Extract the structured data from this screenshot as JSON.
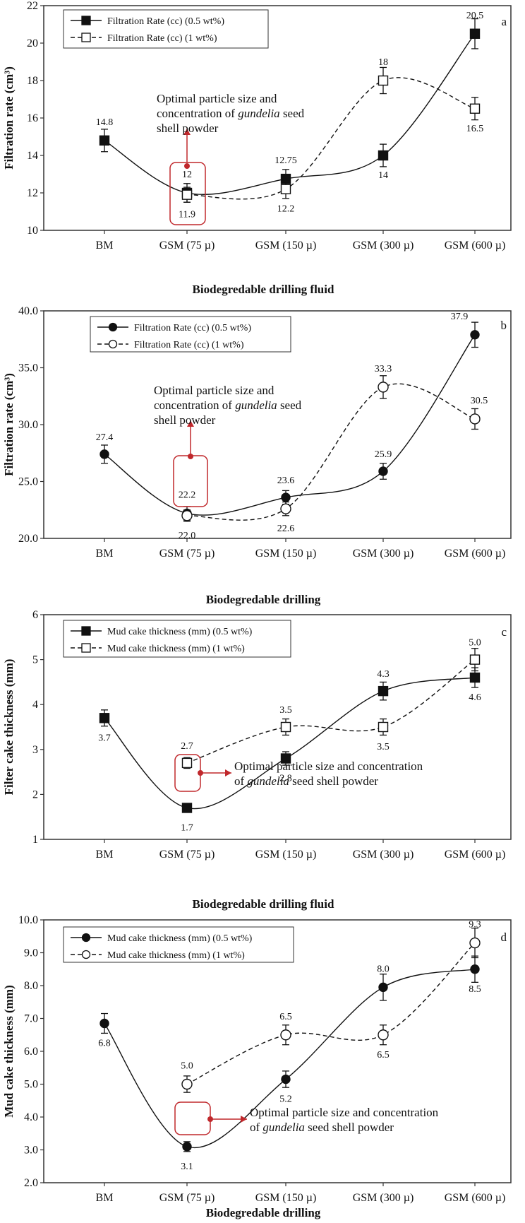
{
  "chart_data": [
    {
      "type": "line",
      "panel": "a",
      "xlabel": "Biodegredable drilling fluid",
      "ylabel": "Filtration rate (cm³)",
      "ylim": [
        10,
        22
      ],
      "yticks": [
        "10",
        "12",
        "14",
        "16",
        "18",
        "20",
        "22"
      ],
      "categories": [
        "BM",
        "GSM (75 µ)",
        "GSM (150 µ)",
        "GSM (300 µ)",
        "GSM (600 µ)"
      ],
      "series": [
        {
          "name": "Filtration Rate (cc) (0.5 wt%)",
          "marker": "square",
          "filled": true,
          "dashed": false,
          "values": [
            14.8,
            12.0,
            12.75,
            14.0,
            20.5
          ],
          "errors": [
            0.6,
            0.5,
            0.5,
            0.6,
            0.8
          ],
          "labels": [
            "14.8",
            "12",
            "12.75",
            "14",
            "20.5"
          ]
        },
        {
          "name": "Filtration Rate (cc) (1 wt%)",
          "marker": "square",
          "filled": false,
          "dashed": true,
          "values": [
            null,
            11.9,
            12.2,
            18.0,
            16.5
          ],
          "errors": [
            0,
            0.4,
            0.5,
            0.7,
            0.6
          ],
          "labels": [
            "",
            "11.9",
            "12.2",
            "18",
            "16.5"
          ]
        }
      ],
      "annotation": {
        "lines": [
          "Optimal particle size and",
          "concentration of |gundelia| seed",
          "shell powder"
        ]
      }
    },
    {
      "type": "line",
      "panel": "b",
      "xlabel": "Biodegredable drilling",
      "ylabel": "Filtration rate (cm³)",
      "ylim": [
        20,
        40
      ],
      "yticks": [
        "20.0",
        "25.0",
        "30.0",
        "35.0",
        "40.0"
      ],
      "categories": [
        "BM",
        "GSM (75 µ)",
        "GSM (150 µ)",
        "GSM (300 µ)",
        "GSM (600 µ)"
      ],
      "series": [
        {
          "name": "Filtration Rate (cc) (0.5 wt%)",
          "marker": "circle",
          "filled": true,
          "dashed": false,
          "values": [
            27.4,
            22.2,
            23.6,
            25.9,
            37.9
          ],
          "errors": [
            0.8,
            0.6,
            0.6,
            0.7,
            1.1
          ],
          "labels": [
            "27.4",
            "22.2",
            "23.6",
            "25.9",
            "37.9"
          ]
        },
        {
          "name": "Filtration Rate (cc) (1 wt%)",
          "marker": "circle",
          "filled": false,
          "dashed": true,
          "values": [
            null,
            22.0,
            22.6,
            33.3,
            30.5
          ],
          "errors": [
            0,
            0.5,
            0.6,
            1.0,
            0.9
          ],
          "labels": [
            "",
            "22.0",
            "22.6",
            "33.3",
            "30.5"
          ]
        }
      ],
      "annotation": {
        "lines": [
          "Optimal particle size and",
          "concentration of |gundelia| seed",
          "shell powder"
        ]
      }
    },
    {
      "type": "line",
      "panel": "c",
      "xlabel": "Biodegredable drilling fluid",
      "ylabel": "Filter cake thickness (mm)",
      "ylim": [
        1,
        6
      ],
      "yticks": [
        "1",
        "2",
        "3",
        "4",
        "5",
        "6"
      ],
      "categories": [
        "BM",
        "GSM (75 µ)",
        "GSM (150 µ)",
        "GSM (300 µ)",
        "GSM (600 µ)"
      ],
      "series": [
        {
          "name": "Mud cake thickness (mm) (0.5 wt%)",
          "marker": "square",
          "filled": true,
          "dashed": false,
          "values": [
            3.7,
            1.7,
            2.8,
            4.3,
            4.6
          ],
          "errors": [
            0.18,
            0.08,
            0.15,
            0.2,
            0.22
          ],
          "labels": [
            "3.7",
            "1.7",
            "2.8",
            "4.3",
            "4.6"
          ]
        },
        {
          "name": "Mud cake thickness (mm) (1 wt%)",
          "marker": "square",
          "filled": false,
          "dashed": true,
          "values": [
            null,
            2.7,
            3.5,
            3.5,
            5.0
          ],
          "errors": [
            0,
            0.12,
            0.18,
            0.18,
            0.25
          ],
          "labels": [
            "",
            "2.7",
            "3.5",
            "3.5",
            "5.0"
          ]
        }
      ],
      "annotation": {
        "lines": [
          "Optimal particle size and concentration",
          "of |gundelia| seed shell powder"
        ]
      }
    },
    {
      "type": "line",
      "panel": "d",
      "xlabel": "Biodegredable drilling",
      "ylabel": "Mud cake thickness (mm)",
      "ylim": [
        2,
        10
      ],
      "yticks": [
        "2.0",
        "3.0",
        "4.0",
        "5.0",
        "6.0",
        "7.0",
        "8.0",
        "9.0",
        "10.0"
      ],
      "categories": [
        "BM",
        "GSM (75 µ)",
        "GSM (150 µ)",
        "GSM (300 µ)",
        "GSM (600 µ)"
      ],
      "series": [
        {
          "name": "Mud cake thickness (mm) (0.5 wt%)",
          "marker": "circle",
          "filled": true,
          "dashed": false,
          "values": [
            6.85,
            3.1,
            5.15,
            7.95,
            8.5
          ],
          "errors": [
            0.3,
            0.15,
            0.25,
            0.4,
            0.4
          ],
          "labels": [
            "6.8",
            "3.1",
            "5.2",
            "8.0",
            "8.5"
          ]
        },
        {
          "name": "Mud cake thickness (mm) (1 wt%)",
          "marker": "circle",
          "filled": false,
          "dashed": true,
          "values": [
            null,
            5.0,
            6.5,
            6.5,
            9.3
          ],
          "errors": [
            0,
            0.25,
            0.3,
            0.3,
            0.45
          ],
          "labels": [
            "",
            "5.0",
            "6.5",
            "6.5",
            "9.3"
          ]
        }
      ],
      "annotation": {
        "lines": [
          "Optimal particle size and concentration",
          "of |gundelia| seed shell powder"
        ]
      }
    }
  ]
}
